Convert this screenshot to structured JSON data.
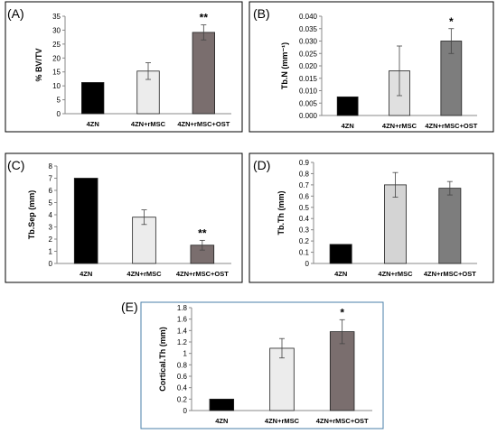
{
  "chart_data": [
    {
      "type": "bar",
      "panel_label": "(A)",
      "ylabel": "% BV/TV",
      "categories": [
        "4ZN",
        "4ZN+rMSC",
        "4ZN+rMSC+OST"
      ],
      "values": [
        11.2,
        15.3,
        29.2
      ],
      "errors": [
        0,
        3.0,
        2.7
      ],
      "significance": [
        "",
        "",
        "**"
      ],
      "colors": [
        "#000000",
        "#ececec",
        "#7a6e6e"
      ],
      "ylim": [
        0,
        35
      ],
      "yticks": [
        "0",
        "5",
        "10",
        "15",
        "20",
        "25",
        "30",
        "35"
      ]
    },
    {
      "type": "bar",
      "panel_label": "(B)",
      "ylabel": "Tb.N (mm⁻¹)",
      "categories": [
        "4ZN",
        "4ZN+rMSC",
        "4ZN+rMSC+OST"
      ],
      "values": [
        0.0075,
        0.018,
        0.03
      ],
      "errors": [
        0,
        0.01,
        0.005
      ],
      "significance": [
        "",
        "",
        "*"
      ],
      "colors": [
        "#000000",
        "#e0e0e0",
        "#7d7d7d"
      ],
      "ylim": [
        0,
        0.04
      ],
      "yticks": [
        "0.000",
        "0.005",
        "0.010",
        "0.015",
        "0.020",
        "0.025",
        "0.030",
        "0.035",
        "0.040"
      ]
    },
    {
      "type": "bar",
      "panel_label": "(C)",
      "ylabel": "Tb.Sep (mm)",
      "categories": [
        "4ZN",
        "4ZN+rMSC",
        "4ZN+rMSC+OST"
      ],
      "values": [
        7.0,
        3.8,
        1.5
      ],
      "errors": [
        0,
        0.6,
        0.4
      ],
      "significance": [
        "",
        "",
        "**"
      ],
      "colors": [
        "#000000",
        "#ececec",
        "#7a6e6e"
      ],
      "ylim": [
        0,
        8
      ],
      "yticks": [
        "0",
        "1",
        "2",
        "3",
        "4",
        "5",
        "6",
        "7",
        "8"
      ]
    },
    {
      "type": "bar",
      "panel_label": "(D)",
      "ylabel": "Tb.Th (mm)",
      "categories": [
        "4ZN",
        "4ZN+rMSC",
        "4ZN+rMSC+OST"
      ],
      "values": [
        0.17,
        0.7,
        0.67
      ],
      "errors": [
        0,
        0.11,
        0.06
      ],
      "significance": [
        "",
        "",
        ""
      ],
      "colors": [
        "#000000",
        "#d4d4d4",
        "#7d7d7d"
      ],
      "ylim": [
        0,
        0.9
      ],
      "yticks": [
        "0",
        "0.1",
        "0.2",
        "0.3",
        "0.4",
        "0.5",
        "0.6",
        "0.7",
        "0.8",
        "0.9"
      ]
    },
    {
      "type": "bar",
      "panel_label": "(E)",
      "ylabel": "Cortical.Th (mm)",
      "categories": [
        "4ZN",
        "4ZN+rMSC",
        "4ZN+rMSC+OST"
      ],
      "values": [
        0.2,
        1.09,
        1.38
      ],
      "errors": [
        0,
        0.17,
        0.21
      ],
      "significance": [
        "",
        "",
        "*"
      ],
      "colors": [
        "#000000",
        "#ececec",
        "#7a6e6e"
      ],
      "ylim": [
        0,
        1.8
      ],
      "yticks": [
        "0",
        "0.2",
        "0.4",
        "0.6",
        "0.8",
        "1",
        "1.2",
        "1.4",
        "1.6",
        "1.8"
      ]
    }
  ]
}
